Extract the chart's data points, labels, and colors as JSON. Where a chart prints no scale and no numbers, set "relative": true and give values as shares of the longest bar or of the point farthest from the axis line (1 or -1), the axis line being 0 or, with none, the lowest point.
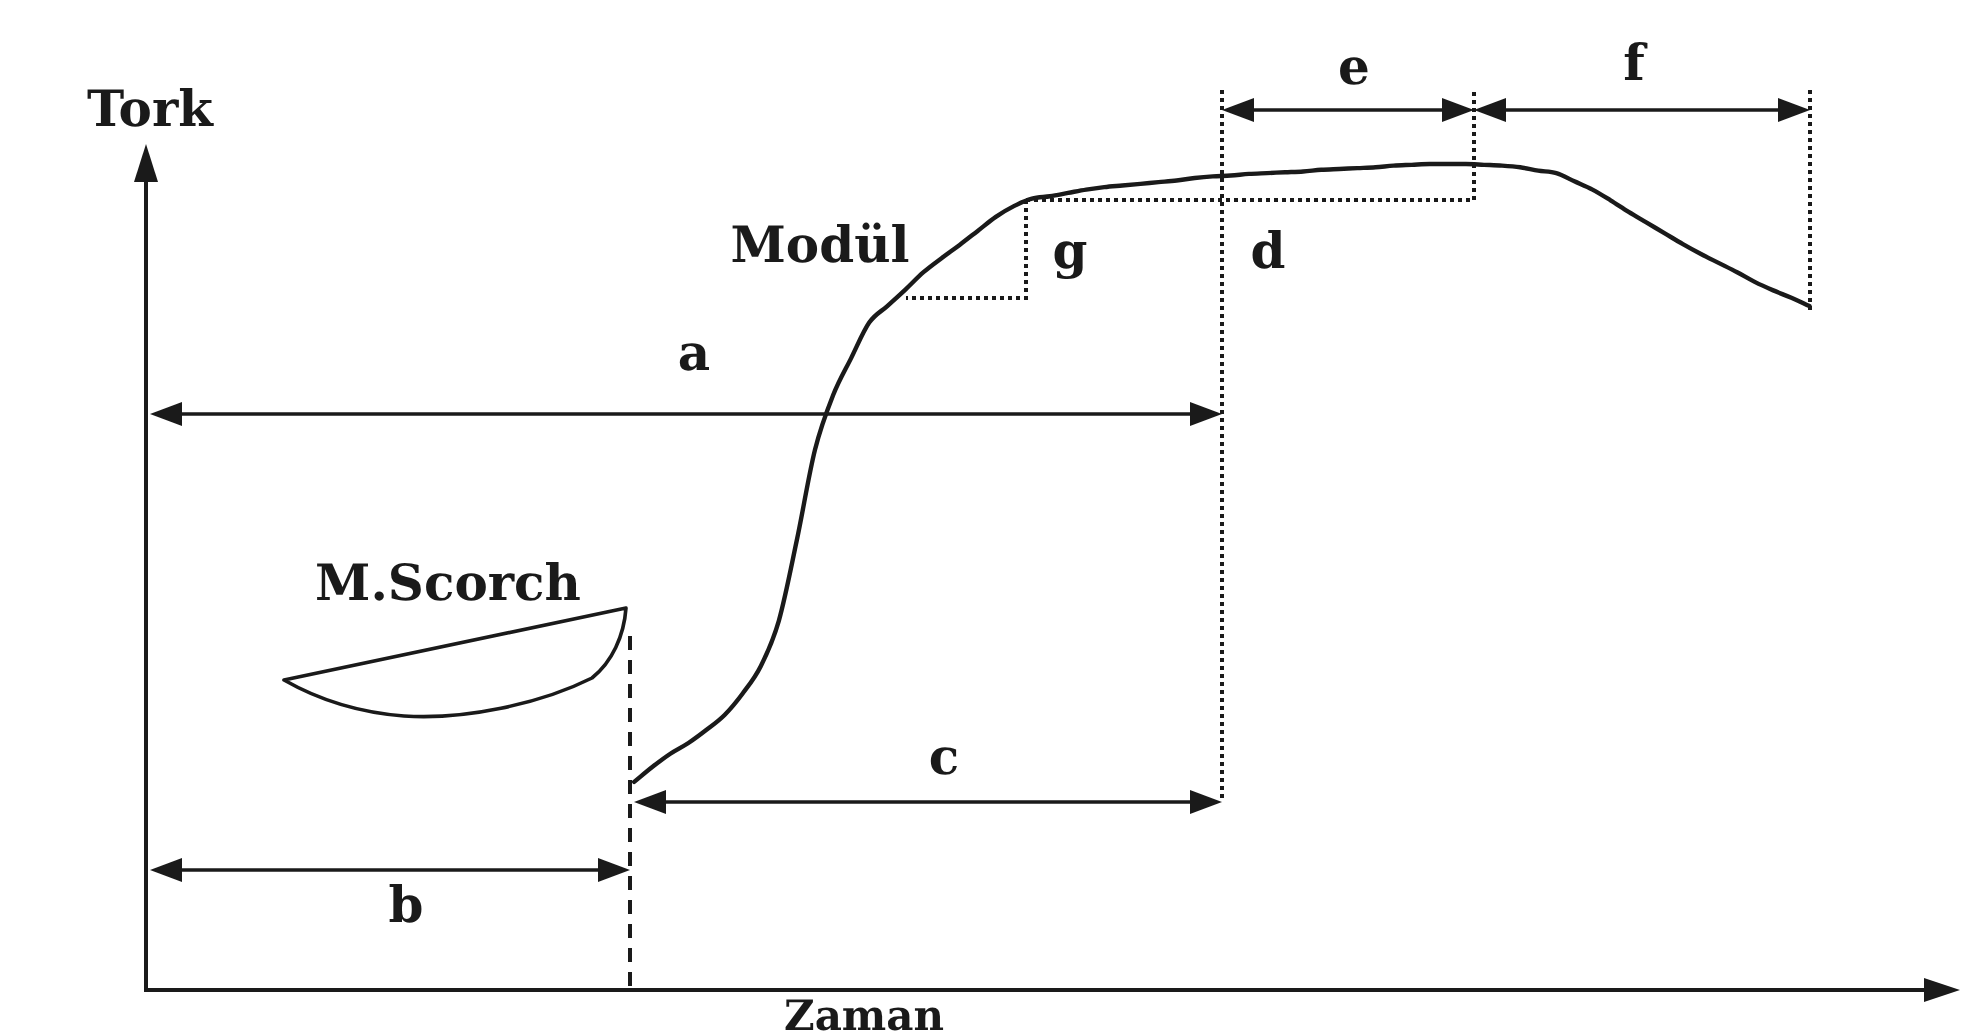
{
  "chart_data": {
    "type": "line",
    "relative": true,
    "ylabel": "Tork",
    "xlabel": "Zaman",
    "categories": [
      null,
      null,
      null,
      null,
      null,
      null,
      null,
      null,
      null,
      null,
      null,
      null,
      null,
      null,
      null,
      null,
      null,
      null,
      null,
      null,
      null,
      null,
      null,
      null,
      null,
      null,
      null,
      null,
      null,
      null,
      null,
      null,
      null,
      null,
      null,
      null,
      null,
      null,
      null,
      null,
      null,
      null,
      null,
      null,
      null,
      null,
      null,
      null,
      null,
      null,
      null,
      null,
      null,
      null,
      null,
      null,
      null,
      null,
      null,
      null,
      null,
      null,
      null,
      null,
      null,
      null,
      null,
      null,
      null,
      null,
      null,
      null,
      null,
      null,
      null,
      null,
      null,
      null,
      null,
      null,
      null,
      null,
      null,
      null,
      null,
      null,
      null,
      null,
      null,
      null,
      null,
      null,
      null,
      null,
      null,
      null,
      null,
      null,
      null,
      null
    ],
    "series": [
      {
        "color": "#1a1a1a",
        "values": [
          null,
          null,
          null,
          null,
          null,
          null,
          null,
          null,
          null,
          null,
          null,
          null,
          null,
          null,
          null,
          null,
          null,
          null,
          null,
          null,
          null,
          null,
          null,
          null,
          null,
          null,
          null,
          0.252,
          0.27,
          0.286,
          0.299,
          0.315,
          0.333,
          0.359,
          0.392,
          0.447,
          0.545,
          0.654,
          0.72,
          0.765,
          0.808,
          0.828,
          0.848,
          0.869,
          0.886,
          0.902,
          0.919,
          0.936,
          0.949,
          0.958,
          0.961,
          0.965,
          0.969,
          0.972,
          0.974,
          0.976,
          0.978,
          0.98,
          0.983,
          0.985,
          0.986,
          0.988,
          0.989,
          0.99,
          0.991,
          0.993,
          0.994,
          0.995,
          0.996,
          0.998,
          0.999,
          1.0,
          1.0,
          1.0,
          0.999,
          0.998,
          0.996,
          0.992,
          0.989,
          0.979,
          0.969,
          0.956,
          0.942,
          0.929,
          0.916,
          0.903,
          0.891,
          0.88,
          0.869,
          0.857,
          0.847,
          0.838,
          0.828,
          null,
          null,
          null,
          null,
          null,
          null,
          null
        ]
      }
    ],
    "annotations": [
      "a",
      "b",
      "c",
      "d",
      "e",
      "f",
      "g",
      "Modül",
      "M.Scorch"
    ]
  }
}
